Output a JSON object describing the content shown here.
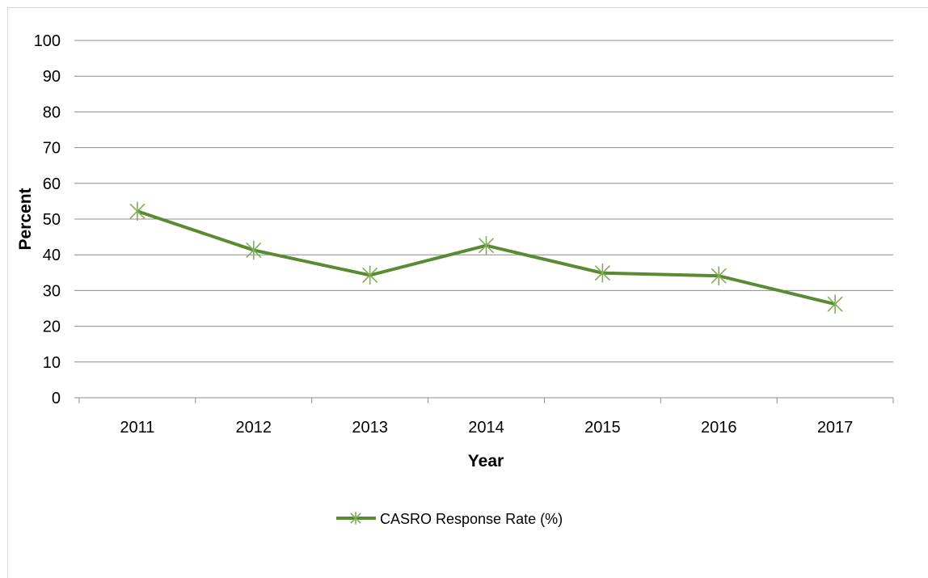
{
  "chart_data": {
    "type": "line",
    "title": "",
    "xlabel": "Year",
    "ylabel": "Percent",
    "categories": [
      "2011",
      "2012",
      "2013",
      "2014",
      "2015",
      "2016",
      "2017"
    ],
    "series": [
      {
        "name": "CASRO Response Rate (%)",
        "values": [
          52.2,
          41.3,
          34.3,
          42.6,
          34.9,
          34.1,
          26.2
        ],
        "color": "#5a8a32",
        "marker": "star"
      }
    ],
    "ylim": [
      0,
      100
    ],
    "yticks": [
      0,
      10,
      20,
      30,
      40,
      50,
      60,
      70,
      80,
      90,
      100
    ],
    "grid": true,
    "legend": "bottom"
  }
}
